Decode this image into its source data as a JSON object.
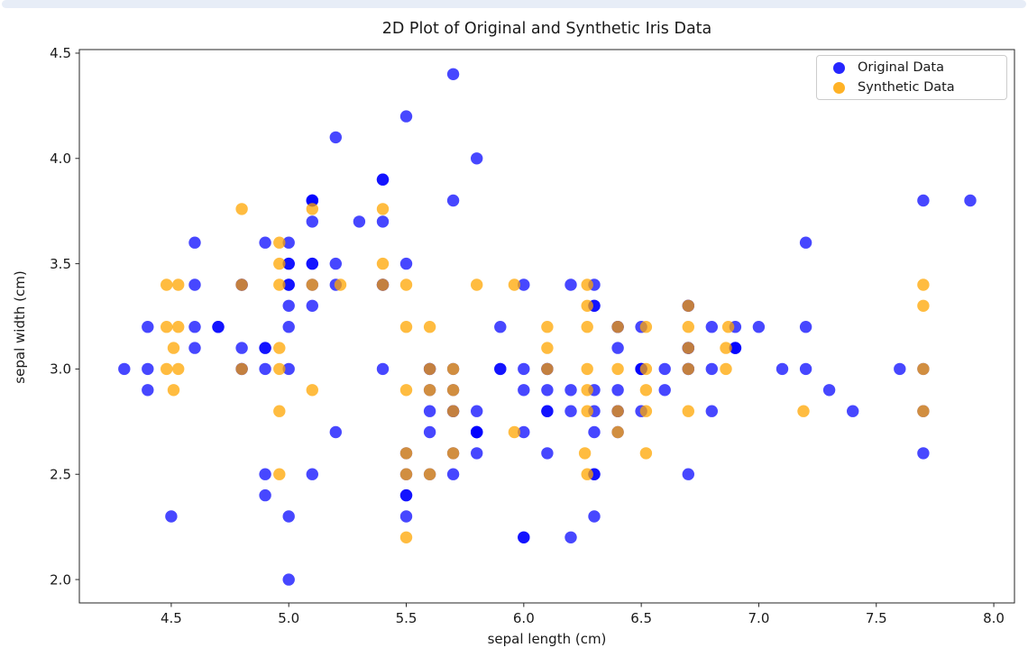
{
  "page": {
    "top_strip_color": "#e7edf7"
  },
  "chart_data": {
    "type": "scatter",
    "title": "2D Plot of Original and Synthetic Iris Data",
    "xlabel": "sepal length (cm)",
    "ylabel": "sepal width (cm)",
    "xlim": [
      4.109,
      8.088
    ],
    "ylim": [
      1.889,
      4.517
    ],
    "x_tick_values": [
      4.5,
      5.0,
      5.5,
      6.0,
      6.5,
      7.0,
      7.5,
      8.0
    ],
    "x_tick_labels": [
      "4.5",
      "5.0",
      "5.5",
      "6.0",
      "6.5",
      "7.0",
      "7.5",
      "8.0"
    ],
    "y_tick_values": [
      2.0,
      2.5,
      3.0,
      3.5,
      4.0,
      4.5
    ],
    "y_tick_labels": [
      "2.0",
      "2.5",
      "3.0",
      "3.5",
      "4.0",
      "4.5"
    ],
    "grid": false,
    "marker_radius": 6.7,
    "axis_color": "#262626",
    "legend": {
      "position": "upper right",
      "entries": [
        {
          "label": "Original Data",
          "color": "#0000ff"
        },
        {
          "label": "Synthetic Data",
          "color": "#ffa500"
        }
      ]
    },
    "series": [
      {
        "name": "Original Data",
        "color": "#0000ff",
        "alpha": 0.72,
        "points": [
          [
            5.1,
            3.5
          ],
          [
            4.9,
            3.0
          ],
          [
            4.7,
            3.2
          ],
          [
            4.6,
            3.1
          ],
          [
            5.0,
            3.6
          ],
          [
            5.4,
            3.9
          ],
          [
            4.6,
            3.4
          ],
          [
            5.0,
            3.4
          ],
          [
            4.4,
            2.9
          ],
          [
            4.9,
            3.1
          ],
          [
            5.4,
            3.7
          ],
          [
            4.8,
            3.4
          ],
          [
            4.8,
            3.0
          ],
          [
            4.3,
            3.0
          ],
          [
            5.8,
            4.0
          ],
          [
            5.7,
            4.4
          ],
          [
            5.4,
            3.9
          ],
          [
            5.1,
            3.5
          ],
          [
            5.7,
            3.8
          ],
          [
            5.1,
            3.8
          ],
          [
            5.4,
            3.4
          ],
          [
            5.1,
            3.7
          ],
          [
            4.6,
            3.6
          ],
          [
            5.1,
            3.3
          ],
          [
            4.8,
            3.4
          ],
          [
            5.0,
            3.0
          ],
          [
            5.0,
            3.4
          ],
          [
            5.2,
            3.5
          ],
          [
            5.2,
            3.4
          ],
          [
            4.7,
            3.2
          ],
          [
            4.8,
            3.1
          ],
          [
            5.4,
            3.4
          ],
          [
            5.2,
            4.1
          ],
          [
            5.5,
            4.2
          ],
          [
            4.9,
            3.1
          ],
          [
            5.0,
            3.2
          ],
          [
            5.5,
            3.5
          ],
          [
            4.9,
            3.6
          ],
          [
            4.4,
            3.0
          ],
          [
            5.1,
            3.4
          ],
          [
            5.0,
            3.5
          ],
          [
            4.5,
            2.3
          ],
          [
            4.4,
            3.2
          ],
          [
            5.0,
            3.5
          ],
          [
            5.1,
            3.8
          ],
          [
            4.8,
            3.0
          ],
          [
            5.1,
            3.8
          ],
          [
            4.6,
            3.2
          ],
          [
            5.3,
            3.7
          ],
          [
            5.0,
            3.3
          ],
          [
            7.0,
            3.2
          ],
          [
            6.4,
            3.2
          ],
          [
            6.9,
            3.1
          ],
          [
            5.5,
            2.3
          ],
          [
            6.5,
            2.8
          ],
          [
            5.7,
            2.8
          ],
          [
            6.3,
            3.3
          ],
          [
            4.9,
            2.4
          ],
          [
            6.6,
            2.9
          ],
          [
            5.2,
            2.7
          ],
          [
            5.0,
            2.0
          ],
          [
            5.9,
            3.0
          ],
          [
            6.0,
            2.2
          ],
          [
            6.1,
            2.9
          ],
          [
            5.6,
            2.9
          ],
          [
            6.7,
            3.1
          ],
          [
            5.6,
            3.0
          ],
          [
            5.8,
            2.7
          ],
          [
            6.2,
            2.2
          ],
          [
            5.6,
            2.5
          ],
          [
            5.9,
            3.2
          ],
          [
            6.1,
            2.8
          ],
          [
            6.3,
            2.5
          ],
          [
            6.1,
            2.8
          ],
          [
            6.4,
            2.9
          ],
          [
            6.6,
            3.0
          ],
          [
            6.8,
            2.8
          ],
          [
            6.7,
            3.0
          ],
          [
            6.0,
            2.9
          ],
          [
            5.7,
            2.6
          ],
          [
            5.5,
            2.4
          ],
          [
            5.5,
            2.4
          ],
          [
            5.8,
            2.7
          ],
          [
            6.0,
            2.7
          ],
          [
            5.4,
            3.0
          ],
          [
            6.0,
            3.4
          ],
          [
            6.7,
            3.1
          ],
          [
            6.3,
            2.3
          ],
          [
            5.6,
            3.0
          ],
          [
            5.5,
            2.5
          ],
          [
            5.5,
            2.6
          ],
          [
            6.1,
            3.0
          ],
          [
            5.8,
            2.6
          ],
          [
            5.0,
            2.3
          ],
          [
            5.6,
            2.7
          ],
          [
            5.7,
            3.0
          ],
          [
            5.7,
            2.9
          ],
          [
            6.2,
            2.9
          ],
          [
            5.1,
            2.5
          ],
          [
            5.7,
            2.8
          ],
          [
            6.3,
            3.3
          ],
          [
            5.8,
            2.7
          ],
          [
            7.1,
            3.0
          ],
          [
            6.3,
            2.9
          ],
          [
            6.5,
            3.0
          ],
          [
            7.6,
            3.0
          ],
          [
            4.9,
            2.5
          ],
          [
            7.3,
            2.9
          ],
          [
            6.7,
            2.5
          ],
          [
            7.2,
            3.6
          ],
          [
            6.5,
            3.2
          ],
          [
            6.4,
            2.7
          ],
          [
            6.8,
            3.0
          ],
          [
            5.7,
            2.5
          ],
          [
            5.8,
            2.8
          ],
          [
            6.4,
            3.2
          ],
          [
            6.5,
            3.0
          ],
          [
            7.7,
            3.8
          ],
          [
            7.7,
            2.6
          ],
          [
            6.0,
            2.2
          ],
          [
            6.9,
            3.2
          ],
          [
            5.6,
            2.8
          ],
          [
            7.7,
            2.8
          ],
          [
            6.3,
            2.7
          ],
          [
            6.7,
            3.3
          ],
          [
            7.2,
            3.2
          ],
          [
            6.2,
            2.8
          ],
          [
            6.1,
            3.0
          ],
          [
            6.4,
            2.8
          ],
          [
            7.2,
            3.0
          ],
          [
            7.4,
            2.8
          ],
          [
            7.9,
            3.8
          ],
          [
            6.4,
            2.8
          ],
          [
            6.3,
            2.8
          ],
          [
            6.1,
            2.6
          ],
          [
            7.7,
            3.0
          ],
          [
            6.3,
            3.4
          ],
          [
            6.4,
            3.1
          ],
          [
            6.0,
            3.0
          ],
          [
            6.9,
            3.1
          ],
          [
            6.7,
            3.1
          ],
          [
            6.9,
            3.1
          ],
          [
            5.8,
            2.7
          ],
          [
            6.8,
            3.2
          ],
          [
            6.7,
            3.3
          ],
          [
            6.7,
            3.0
          ],
          [
            6.3,
            2.5
          ],
          [
            6.5,
            3.0
          ],
          [
            6.2,
            3.4
          ],
          [
            5.9,
            3.0
          ]
        ]
      },
      {
        "name": "Synthetic Data",
        "color": "#ffa500",
        "alpha": 0.75,
        "points": [
          [
            4.8,
            3.76
          ],
          [
            5.1,
            3.76
          ],
          [
            5.4,
            3.76
          ],
          [
            4.96,
            3.6
          ],
          [
            4.96,
            3.5
          ],
          [
            5.4,
            3.5
          ],
          [
            4.48,
            3.4
          ],
          [
            4.53,
            3.4
          ],
          [
            4.8,
            3.4
          ],
          [
            4.96,
            3.4
          ],
          [
            5.1,
            3.4
          ],
          [
            5.22,
            3.4
          ],
          [
            5.4,
            3.4
          ],
          [
            5.5,
            3.4
          ],
          [
            5.8,
            3.4
          ],
          [
            5.96,
            3.4
          ],
          [
            6.27,
            3.4
          ],
          [
            7.7,
            3.4
          ],
          [
            6.27,
            3.3
          ],
          [
            6.7,
            3.3
          ],
          [
            7.7,
            3.3
          ],
          [
            4.48,
            3.2
          ],
          [
            4.53,
            3.2
          ],
          [
            5.5,
            3.2
          ],
          [
            5.6,
            3.2
          ],
          [
            6.1,
            3.2
          ],
          [
            6.27,
            3.2
          ],
          [
            6.4,
            3.2
          ],
          [
            6.52,
            3.2
          ],
          [
            6.7,
            3.2
          ],
          [
            6.87,
            3.2
          ],
          [
            4.51,
            3.1
          ],
          [
            4.96,
            3.1
          ],
          [
            6.1,
            3.1
          ],
          [
            6.7,
            3.1
          ],
          [
            6.86,
            3.1
          ],
          [
            4.48,
            3.0
          ],
          [
            4.53,
            3.0
          ],
          [
            4.8,
            3.0
          ],
          [
            4.96,
            3.0
          ],
          [
            5.6,
            3.0
          ],
          [
            5.7,
            3.0
          ],
          [
            6.1,
            3.0
          ],
          [
            6.27,
            3.0
          ],
          [
            6.4,
            3.0
          ],
          [
            6.52,
            3.0
          ],
          [
            6.7,
            3.0
          ],
          [
            6.86,
            3.0
          ],
          [
            7.7,
            3.0
          ],
          [
            4.51,
            2.9
          ],
          [
            5.1,
            2.9
          ],
          [
            5.5,
            2.9
          ],
          [
            5.6,
            2.9
          ],
          [
            5.7,
            2.9
          ],
          [
            6.27,
            2.9
          ],
          [
            6.52,
            2.9
          ],
          [
            4.96,
            2.8
          ],
          [
            5.7,
            2.8
          ],
          [
            6.27,
            2.8
          ],
          [
            6.4,
            2.8
          ],
          [
            6.52,
            2.8
          ],
          [
            6.7,
            2.8
          ],
          [
            7.19,
            2.8
          ],
          [
            7.7,
            2.8
          ],
          [
            5.96,
            2.7
          ],
          [
            6.4,
            2.7
          ],
          [
            5.5,
            2.6
          ],
          [
            5.7,
            2.6
          ],
          [
            6.26,
            2.6
          ],
          [
            6.52,
            2.6
          ],
          [
            4.96,
            2.5
          ],
          [
            5.5,
            2.5
          ],
          [
            5.6,
            2.5
          ],
          [
            6.27,
            2.5
          ],
          [
            5.5,
            2.2
          ]
        ]
      }
    ]
  }
}
